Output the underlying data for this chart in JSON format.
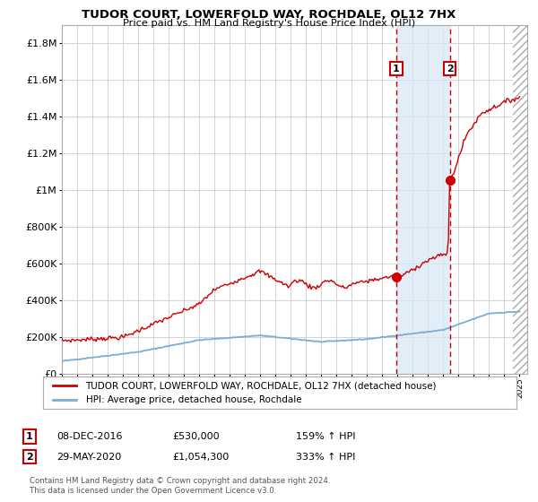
{
  "title": "TUDOR COURT, LOWERFOLD WAY, ROCHDALE, OL12 7HX",
  "subtitle": "Price paid vs. HM Land Registry's House Price Index (HPI)",
  "legend_line1": "TUDOR COURT, LOWERFOLD WAY, ROCHDALE, OL12 7HX (detached house)",
  "legend_line2": "HPI: Average price, detached house, Rochdale",
  "annotation1_date": "08-DEC-2016",
  "annotation1_price": "£530,000",
  "annotation1_hpi": "159% ↑ HPI",
  "annotation2_date": "29-MAY-2020",
  "annotation2_price": "£1,054,300",
  "annotation2_hpi": "333% ↑ HPI",
  "footer": "Contains HM Land Registry data © Crown copyright and database right 2024.\nThis data is licensed under the Open Government Licence v3.0.",
  "red_color": "#cc0000",
  "blue_color": "#7aadd4",
  "background_color": "#ffffff",
  "grid_color": "#cccccc",
  "annotation_box_color": "#d6e8f5",
  "ylim": [
    0,
    1900000
  ],
  "xlim_start": 1995.0,
  "xlim_end": 2025.5,
  "marker1_x": 2016.92,
  "marker1_y": 530000,
  "marker2_x": 2020.42,
  "marker2_y": 1054300
}
